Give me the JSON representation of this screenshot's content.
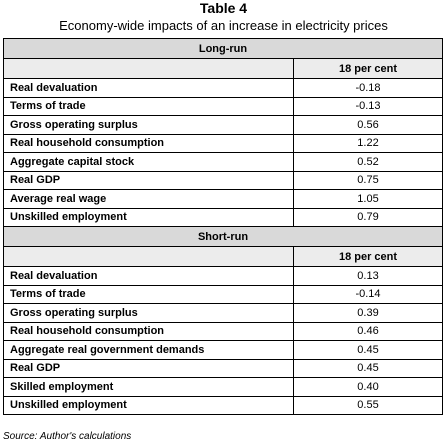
{
  "header": {
    "title": "Table 4",
    "subtitle": "Economy-wide impacts of an increase in electricity prices"
  },
  "table": {
    "sections": [
      {
        "name": "Long-run",
        "column": "18 per cent",
        "rows": [
          [
            "Real devaluation",
            "-0.18"
          ],
          [
            "Terms of trade",
            "-0.13"
          ],
          [
            "Gross operating surplus",
            "0.56"
          ],
          [
            "Real household consumption",
            "1.22"
          ],
          [
            "Aggregate capital stock",
            "0.52"
          ],
          [
            "Real GDP",
            "0.75"
          ],
          [
            "Average real wage",
            "1.05"
          ],
          [
            "Unskilled employment",
            "0.79"
          ]
        ]
      },
      {
        "name": "Short-run",
        "column": "18 per cent",
        "rows": [
          [
            "Real devaluation",
            "0.13"
          ],
          [
            "Terms of trade",
            "-0.14"
          ],
          [
            "Gross operating surplus",
            "0.39"
          ],
          [
            "Real household consumption",
            "0.46"
          ],
          [
            "Aggregate real government demands",
            "0.45"
          ],
          [
            "Real GDP",
            "0.45"
          ],
          [
            "Skilled employment",
            "0.40"
          ],
          [
            "Unskilled employment",
            "0.55"
          ]
        ]
      }
    ]
  },
  "footer": {
    "source": "Source: Author's calculations"
  }
}
